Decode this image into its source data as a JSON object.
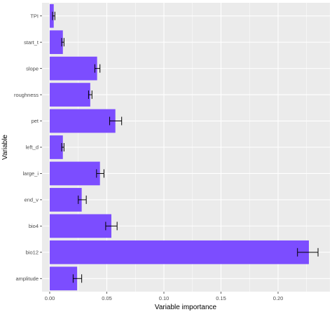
{
  "chart_data": {
    "type": "bar",
    "orientation": "horizontal",
    "xlabel": "Variable importance",
    "ylabel": "Variable",
    "xlim": [
      -0.004,
      0.242
    ],
    "x_ticks": [
      0.0,
      0.05,
      0.1,
      0.15,
      0.2
    ],
    "x_tick_labels": [
      "0.00",
      "0.05",
      "0.10",
      "0.15",
      "0.20"
    ],
    "grid": true,
    "legend": "none",
    "bar_color": "#7C4DFF",
    "panel_background": "#EBEBEB",
    "grid_color": "#FFFFFF",
    "errorbar_color": "#000000",
    "categories": [
      "TPI",
      "start_t",
      "slope",
      "roughness",
      "pet",
      "left_d",
      "large_i",
      "end_v",
      "bio4",
      "bio12",
      "amplitude"
    ],
    "values": [
      0.0035,
      0.0115,
      0.0415,
      0.0355,
      0.0575,
      0.0115,
      0.044,
      0.028,
      0.054,
      0.227,
      0.024
    ],
    "error_low": [
      0.0025,
      0.0105,
      0.0395,
      0.034,
      0.0525,
      0.0105,
      0.041,
      0.025,
      0.049,
      0.217,
      0.0205
    ],
    "error_high": [
      0.0045,
      0.0125,
      0.044,
      0.037,
      0.063,
      0.0125,
      0.0475,
      0.032,
      0.059,
      0.235,
      0.028
    ]
  }
}
